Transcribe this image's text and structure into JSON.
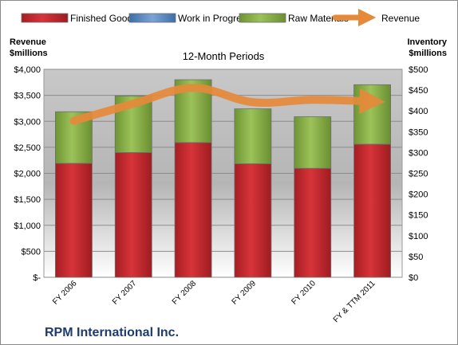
{
  "company": "RPM International Inc.",
  "chart_data": {
    "type": "bar",
    "stacked": true,
    "title": "12-Month Periods",
    "categories": [
      "FY 2006",
      "FY 2007",
      "FY 2008",
      "FY 2009",
      "FY 2010",
      "FY & TTM 2011"
    ],
    "series": [
      {
        "name": "Finished Goods",
        "axis": "right",
        "color": "#c0272d",
        "values": [
          274,
          300,
          324,
          273,
          262,
          320
        ]
      },
      {
        "name": "Work in Progress",
        "axis": "right",
        "color": "#4f81bd",
        "values": [
          0,
          0,
          0,
          0,
          0,
          0
        ]
      },
      {
        "name": "Raw Materials",
        "axis": "right",
        "color": "#8fb14a",
        "values": [
          124,
          136,
          151,
          132,
          124,
          143
        ]
      },
      {
        "name": "Revenue",
        "type": "line",
        "axis": "left",
        "color": "#e68a3a",
        "values": [
          3008,
          3339,
          3644,
          3368,
          3413,
          3382
        ]
      }
    ],
    "left_axis": {
      "label_line1": "Revenue",
      "label_line2": "$millions",
      "ylim": [
        0,
        4000
      ],
      "ticks": [
        "$-",
        "$500",
        "$1,000",
        "$1,500",
        "$2,000",
        "$2,500",
        "$3,000",
        "$3,500",
        "$4,000"
      ]
    },
    "right_axis": {
      "label_line1": "Inventory",
      "label_line2": "$millions",
      "ylim": [
        0,
        500
      ],
      "ticks": [
        "$0",
        "$50",
        "$100",
        "$150",
        "$200",
        "$250",
        "$300",
        "$350",
        "$400",
        "$450",
        "$500"
      ]
    },
    "legend_position": "top",
    "grid": true
  }
}
